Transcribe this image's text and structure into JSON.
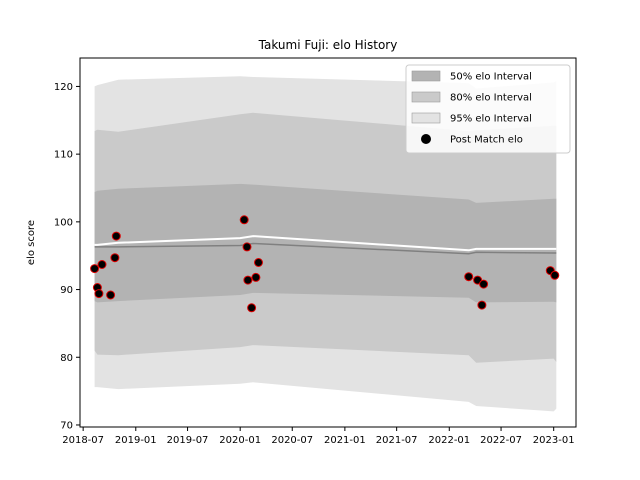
{
  "chart_data": {
    "type": "area",
    "title": "Takumi Fuji: elo History",
    "xlabel": "",
    "ylabel": "elo score",
    "xlim": [
      "2018-06-20",
      "2023-03-20"
    ],
    "ylim": [
      69.7,
      124.2
    ],
    "x_ticks": [
      "2018-07-01",
      "2019-01-01",
      "2019-07-01",
      "2020-01-01",
      "2020-07-01",
      "2021-01-01",
      "2021-07-01",
      "2022-01-01",
      "2022-07-01",
      "2023-01-01"
    ],
    "x_tick_labels": [
      "2018-07",
      "2019-01",
      "2019-07",
      "2020-01",
      "2020-07",
      "2021-01",
      "2021-07",
      "2022-01",
      "2022-07",
      "2023-01"
    ],
    "y_ticks": [
      70,
      80,
      90,
      100,
      110,
      120
    ],
    "y_tick_labels": [
      "70",
      "80",
      "90",
      "100",
      "110",
      "120"
    ],
    "legend_position": "top-right",
    "legend": [
      {
        "label": "50% elo Interval",
        "kind": "band",
        "color": "#b3b3b3"
      },
      {
        "label": "80% elo Interval",
        "kind": "band",
        "color": "#cacaca"
      },
      {
        "label": "95% elo Interval",
        "kind": "band",
        "color": "#e3e3e3"
      },
      {
        "label": "Post Match elo",
        "kind": "marker",
        "color": "#000000"
      }
    ],
    "band_x": [
      "2018-08-10",
      "2018-08-20",
      "2018-11-01",
      "2020-01-01",
      "2020-02-15",
      "2022-03-10",
      "2022-04-05",
      "2023-01-01",
      "2023-01-10"
    ],
    "mean": [
      96.3,
      96.3,
      96.3,
      96.5,
      96.8,
      95.3,
      95.5,
      95.4,
      95.4
    ],
    "mean_upper": [
      96.6,
      96.6,
      96.9,
      97.6,
      97.9,
      95.8,
      96.0,
      96.0,
      96.0
    ],
    "series": [
      {
        "name": "50% elo Interval",
        "lower": [
          88.3,
          88.1,
          88.3,
          89.2,
          89.5,
          88.8,
          88.1,
          88.2,
          88.1
        ],
        "upper": [
          104.4,
          104.6,
          104.9,
          105.6,
          105.5,
          103.3,
          102.8,
          103.4,
          103.4
        ]
      },
      {
        "name": "80% elo Interval",
        "lower": [
          81.0,
          80.4,
          80.3,
          81.5,
          81.8,
          80.3,
          79.2,
          79.8,
          79.3
        ],
        "upper": [
          113.4,
          113.6,
          113.3,
          115.9,
          116.1,
          113.4,
          113.5,
          114.2,
          114.2
        ]
      },
      {
        "name": "95% elo Interval",
        "lower": [
          75.6,
          75.6,
          75.3,
          76.1,
          76.3,
          73.4,
          72.8,
          72.0,
          72.4
        ],
        "upper": [
          120.0,
          120.2,
          121.0,
          121.5,
          121.4,
          120.5,
          119.7,
          120.6,
          120.8
        ]
      }
    ],
    "points": [
      {
        "x": "2018-08-10",
        "y": 93.1
      },
      {
        "x": "2018-08-20",
        "y": 90.3
      },
      {
        "x": "2018-08-25",
        "y": 89.4
      },
      {
        "x": "2018-09-05",
        "y": 93.7
      },
      {
        "x": "2018-10-05",
        "y": 89.2
      },
      {
        "x": "2018-10-20",
        "y": 94.7
      },
      {
        "x": "2018-10-25",
        "y": 97.9
      },
      {
        "x": "2020-01-15",
        "y": 100.3
      },
      {
        "x": "2020-01-25",
        "y": 96.3
      },
      {
        "x": "2020-01-28",
        "y": 91.4
      },
      {
        "x": "2020-02-10",
        "y": 87.3
      },
      {
        "x": "2020-02-25",
        "y": 91.8
      },
      {
        "x": "2020-03-05",
        "y": 94.0
      },
      {
        "x": "2022-03-10",
        "y": 91.9
      },
      {
        "x": "2022-04-10",
        "y": 91.4
      },
      {
        "x": "2022-04-25",
        "y": 87.7
      },
      {
        "x": "2022-05-01",
        "y": 90.8
      },
      {
        "x": "2022-12-20",
        "y": 92.8
      },
      {
        "x": "2023-01-05",
        "y": 92.1
      }
    ],
    "point_face_color": "#000000",
    "point_edge_color": "#dd0000",
    "mean_line_color": "#808080",
    "mean_upper_line_color": "#ffffff"
  }
}
